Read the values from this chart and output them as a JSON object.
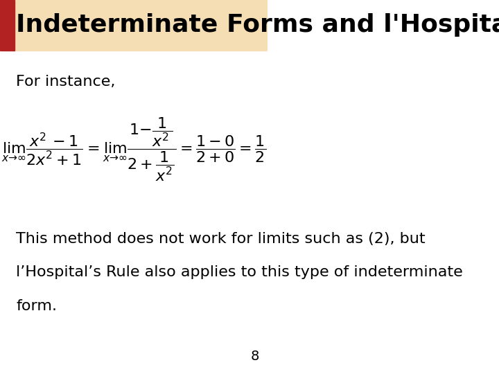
{
  "title": "Indeterminate Forms and l'Hospital's Rule",
  "title_bg_color": "#F5DEB3",
  "title_text_color": "#000000",
  "title_rect_color": "#B22222",
  "subtitle": "For instance,",
  "equation": "$\\lim_{x \\to \\infty} \\dfrac{x^2 - 1}{2x^2 + 1} = \\lim_{x \\to \\infty} \\dfrac{1 - \\dfrac{1}{x^2}}{2 + \\dfrac{1}{x^2}} = \\dfrac{1 - 0}{2 + 0} = \\dfrac{1}{2}$",
  "body_text_line1": "This method does not work for limits such as (2), but",
  "body_text_line2": "l’Hospital’s Rule also applies to this type of indeterminate",
  "body_text_line3": "form.",
  "page_number": "8",
  "bg_color": "#FFFFFF",
  "title_fontsize": 26,
  "subtitle_fontsize": 16,
  "equation_fontsize": 16,
  "body_fontsize": 16,
  "page_fontsize": 14
}
